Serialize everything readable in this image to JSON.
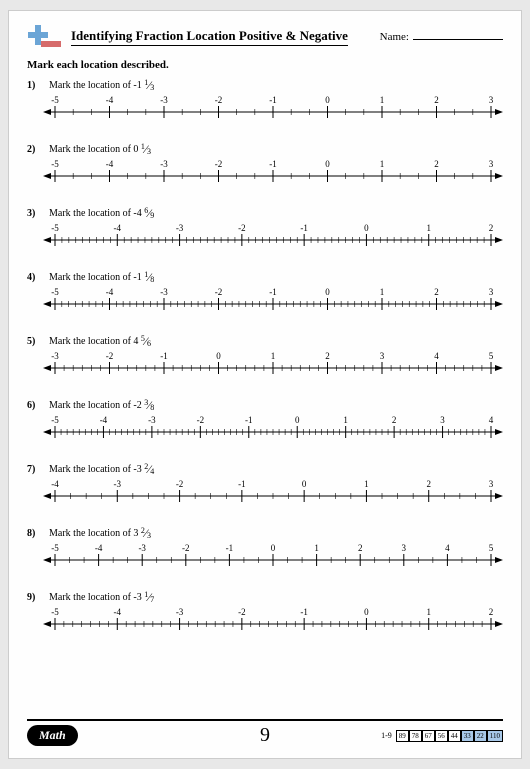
{
  "header": {
    "title": "Identifying Fraction Location Positive & Negative",
    "name_label": "Name:"
  },
  "instruction": "Mark each location described.",
  "problems": [
    {
      "n": "1)",
      "text": "Mark the location of -1 ",
      "fn": "1",
      "fd": "3",
      "range": [
        -5,
        3
      ],
      "sub": 3
    },
    {
      "n": "2)",
      "text": "Mark the location of 0 ",
      "fn": "1",
      "fd": "3",
      "range": [
        -5,
        3
      ],
      "sub": 3
    },
    {
      "n": "3)",
      "text": "Mark the location of -4 ",
      "fn": "6",
      "fd": "9",
      "range": [
        -5,
        2
      ],
      "sub": 9
    },
    {
      "n": "4)",
      "text": "Mark the location of -1 ",
      "fn": "1",
      "fd": "8",
      "range": [
        -5,
        3
      ],
      "sub": 8
    },
    {
      "n": "5)",
      "text": "Mark the location of 4 ",
      "fn": "5",
      "fd": "6",
      "range": [
        -3,
        5
      ],
      "sub": 6
    },
    {
      "n": "6)",
      "text": "Mark the location of -2 ",
      "fn": "3",
      "fd": "8",
      "range": [
        -5,
        4
      ],
      "sub": 8
    },
    {
      "n": "7)",
      "text": "Mark the location of -3 ",
      "fn": "2",
      "fd": "4",
      "range": [
        -4,
        3
      ],
      "sub": 4
    },
    {
      "n": "8)",
      "text": "Mark the location of 3 ",
      "fn": "2",
      "fd": "3",
      "range": [
        -5,
        5
      ],
      "sub": 3
    },
    {
      "n": "9)",
      "text": "Mark the location of -3 ",
      "fn": "1",
      "fd": "7",
      "range": [
        -5,
        2
      ],
      "sub": 7
    }
  ],
  "footer": {
    "math_label": "Math",
    "page_number": "9",
    "score_label": "1-9",
    "boxes": [
      {
        "v": "89",
        "blue": false
      },
      {
        "v": "78",
        "blue": false
      },
      {
        "v": "67",
        "blue": false
      },
      {
        "v": "56",
        "blue": false
      },
      {
        "v": "44",
        "blue": false
      },
      {
        "v": "33",
        "blue": true
      },
      {
        "v": "22",
        "blue": true
      },
      {
        "v": "110",
        "blue": true
      }
    ]
  },
  "colors": {
    "logo_blue": "#6ba5d6",
    "logo_red": "#d66b6b",
    "line": "#000000"
  }
}
